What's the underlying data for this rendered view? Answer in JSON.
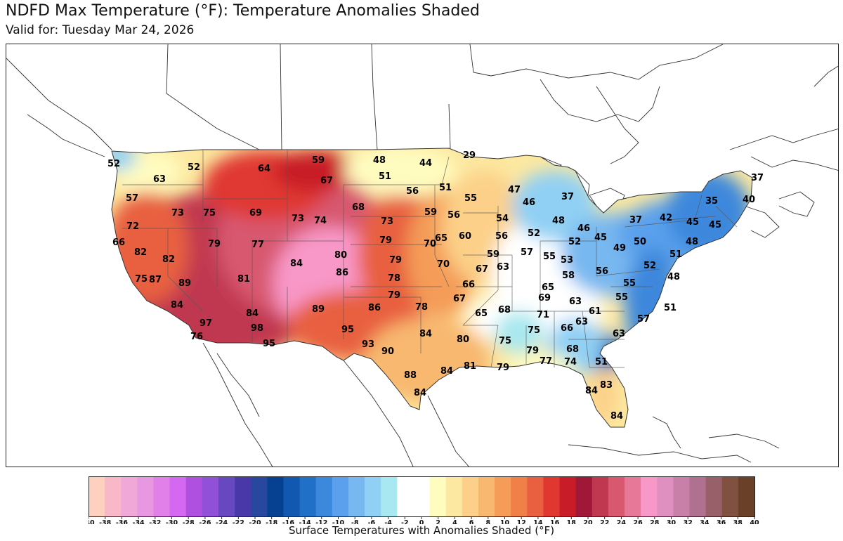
{
  "header": {
    "title": "NDFD Max Temperature (°F): Temperature Anomalies Shaded",
    "subtitle": "Valid for: Tuesday Mar 24, 2026"
  },
  "legend": {
    "label": "Surface Temperatures with Anomalies Shaded (°F)",
    "ticks": [
      -40,
      -38,
      -36,
      -34,
      -32,
      -30,
      -28,
      -26,
      -24,
      -22,
      -20,
      -18,
      -16,
      -14,
      -12,
      -10,
      -8,
      -6,
      -4,
      -2,
      0,
      2,
      4,
      6,
      8,
      10,
      12,
      14,
      16,
      18,
      20,
      22,
      24,
      26,
      28,
      30,
      32,
      34,
      36,
      38,
      40
    ],
    "colors": [
      "#fdd0c0",
      "#f8b8c8",
      "#f0a8d8",
      "#e898e0",
      "#e080e8",
      "#d468f0",
      "#b050e0",
      "#9050d8",
      "#6848c0",
      "#4838a8",
      "#2848a0",
      "#064090",
      "#1058b0",
      "#2070c8",
      "#3c88dc",
      "#5aa0ec",
      "#78b8f0",
      "#90d0f4",
      "#a8e8f0",
      "#ffffff",
      "#ffffff",
      "#fffcc0",
      "#fce8a0",
      "#fcd088",
      "#f8b870",
      "#f49c58",
      "#f08048",
      "#e86040",
      "#e03830",
      "#c81c28",
      "#a01838",
      "#c03850",
      "#d85870",
      "#e87898",
      "#f898c8",
      "#e090c0",
      "#c880a8",
      "#b07090",
      "#986068",
      "#805040",
      "#6a4028"
    ]
  },
  "map": {
    "labels": [
      {
        "id": "seattle",
        "value": "52"
      },
      {
        "id": "portland",
        "value": "63"
      },
      {
        "id": "wa-east",
        "value": "52"
      },
      {
        "id": "or-coast",
        "value": "57"
      },
      {
        "id": "mt-west",
        "value": "64"
      },
      {
        "id": "mt-east",
        "value": "59"
      },
      {
        "id": "mt-se",
        "value": "67"
      },
      {
        "id": "nd-west",
        "value": "48"
      },
      {
        "id": "nd-east",
        "value": "44"
      },
      {
        "id": "nd-central",
        "value": "51"
      },
      {
        "id": "mn-north",
        "value": "29"
      },
      {
        "id": "sd-east",
        "value": "56"
      },
      {
        "id": "mn-south",
        "value": "51"
      },
      {
        "id": "mn-se",
        "value": "55"
      },
      {
        "id": "wi-north",
        "value": "47"
      },
      {
        "id": "mi-up",
        "value": "46"
      },
      {
        "id": "mi-north",
        "value": "37"
      },
      {
        "id": "ca-north",
        "value": "73"
      },
      {
        "id": "id-south",
        "value": "75"
      },
      {
        "id": "wy-west",
        "value": "69"
      },
      {
        "id": "wy-central",
        "value": "73"
      },
      {
        "id": "wy-south",
        "value": "74"
      },
      {
        "id": "sd-west",
        "value": "68"
      },
      {
        "id": "ne-west",
        "value": "73"
      },
      {
        "id": "ia-west",
        "value": "59"
      },
      {
        "id": "ia-east",
        "value": "56"
      },
      {
        "id": "wi-south",
        "value": "54"
      },
      {
        "id": "mi-south",
        "value": "48"
      },
      {
        "id": "ny-west",
        "value": "46"
      },
      {
        "id": "vt",
        "value": "37"
      },
      {
        "id": "me-north",
        "value": "37"
      },
      {
        "id": "me-south",
        "value": "40"
      },
      {
        "id": "nh",
        "value": "35"
      },
      {
        "id": "ny-north",
        "value": "42"
      },
      {
        "id": "ma",
        "value": "45"
      },
      {
        "id": "ri",
        "value": "45"
      },
      {
        "id": "ca-coast",
        "value": "72"
      },
      {
        "id": "sf",
        "value": "66"
      },
      {
        "id": "sacramento",
        "value": "82"
      },
      {
        "id": "reno",
        "value": "79"
      },
      {
        "id": "slc",
        "value": "77"
      },
      {
        "id": "ne-east",
        "value": "79"
      },
      {
        "id": "kc",
        "value": "70"
      },
      {
        "id": "mo-north",
        "value": "65"
      },
      {
        "id": "ia-south",
        "value": "60"
      },
      {
        "id": "il-north",
        "value": "56"
      },
      {
        "id": "in-north",
        "value": "52"
      },
      {
        "id": "oh-north",
        "value": "52"
      },
      {
        "id": "pa-west",
        "value": "45"
      },
      {
        "id": "pa-central",
        "value": "49"
      },
      {
        "id": "ny-south",
        "value": "50"
      },
      {
        "id": "nyc",
        "value": "51"
      },
      {
        "id": "ct",
        "value": "48"
      },
      {
        "id": "fresno",
        "value": "82"
      },
      {
        "id": "co-west",
        "value": "84"
      },
      {
        "id": "co-east",
        "value": "80"
      },
      {
        "id": "ks-west",
        "value": "86"
      },
      {
        "id": "ks-east",
        "value": "79"
      },
      {
        "id": "mo-west",
        "value": "70"
      },
      {
        "id": "il-south",
        "value": "59"
      },
      {
        "id": "in-south",
        "value": "57"
      },
      {
        "id": "oh-south",
        "value": "55"
      },
      {
        "id": "wv",
        "value": "53"
      },
      {
        "id": "md",
        "value": "52"
      },
      {
        "id": "de",
        "value": "48"
      },
      {
        "id": "la",
        "value": "75"
      },
      {
        "id": "la-inland",
        "value": "87"
      },
      {
        "id": "vegas",
        "value": "89"
      },
      {
        "id": "nv-south",
        "value": "81"
      },
      {
        "id": "ok-north",
        "value": "78"
      },
      {
        "id": "mo-south",
        "value": "67"
      },
      {
        "id": "stl",
        "value": "63"
      },
      {
        "id": "ky-west",
        "value": "58"
      },
      {
        "id": "va-west",
        "value": "56"
      },
      {
        "id": "va-east",
        "value": "55"
      },
      {
        "id": "tn-west",
        "value": "65"
      },
      {
        "id": "sd-diego",
        "value": "84"
      },
      {
        "id": "az-west",
        "value": "84"
      },
      {
        "id": "nm-central",
        "value": "89"
      },
      {
        "id": "ok-west",
        "value": "86"
      },
      {
        "id": "ok-central",
        "value": "79"
      },
      {
        "id": "ok-east",
        "value": "78"
      },
      {
        "id": "ar-north",
        "value": "66"
      },
      {
        "id": "ar-central",
        "value": "67"
      },
      {
        "id": "tn-central",
        "value": "69"
      },
      {
        "id": "nc-west",
        "value": "63"
      },
      {
        "id": "nc-east",
        "value": "55"
      },
      {
        "id": "norfolk",
        "value": "51"
      },
      {
        "id": "mx-border",
        "value": "97"
      },
      {
        "id": "phoenix",
        "value": "98"
      },
      {
        "id": "nm-south",
        "value": "95"
      },
      {
        "id": "tx-north",
        "value": "84"
      },
      {
        "id": "ar-south",
        "value": "65"
      },
      {
        "id": "ms-north",
        "value": "68"
      },
      {
        "id": "al-north",
        "value": "71"
      },
      {
        "id": "ga-north",
        "value": "61"
      },
      {
        "id": "sc-west",
        "value": "63"
      },
      {
        "id": "sc-coast",
        "value": "57"
      },
      {
        "id": "yuma",
        "value": "76"
      },
      {
        "id": "tucson",
        "value": "95"
      },
      {
        "id": "tx-west",
        "value": "93"
      },
      {
        "id": "tx-central-west",
        "value": "90"
      },
      {
        "id": "tx-east",
        "value": "80"
      },
      {
        "id": "la-north",
        "value": "75"
      },
      {
        "id": "ms-central",
        "value": "75"
      },
      {
        "id": "al-central",
        "value": "66"
      },
      {
        "id": "sc-south",
        "value": "63"
      },
      {
        "id": "ms-south",
        "value": "79"
      },
      {
        "id": "ga-south",
        "value": "68"
      },
      {
        "id": "tx-south",
        "value": "88"
      },
      {
        "id": "houston",
        "value": "84"
      },
      {
        "id": "la-south",
        "value": "81"
      },
      {
        "id": "la-coast",
        "value": "79"
      },
      {
        "id": "fl-panhandle",
        "value": "77"
      },
      {
        "id": "fl-north",
        "value": "74"
      },
      {
        "id": "jax",
        "value": "51"
      },
      {
        "id": "tx-border",
        "value": "84"
      },
      {
        "id": "fl-west",
        "value": "84"
      },
      {
        "id": "fl-east",
        "value": "83"
      },
      {
        "id": "miami",
        "value": "84"
      }
    ]
  }
}
